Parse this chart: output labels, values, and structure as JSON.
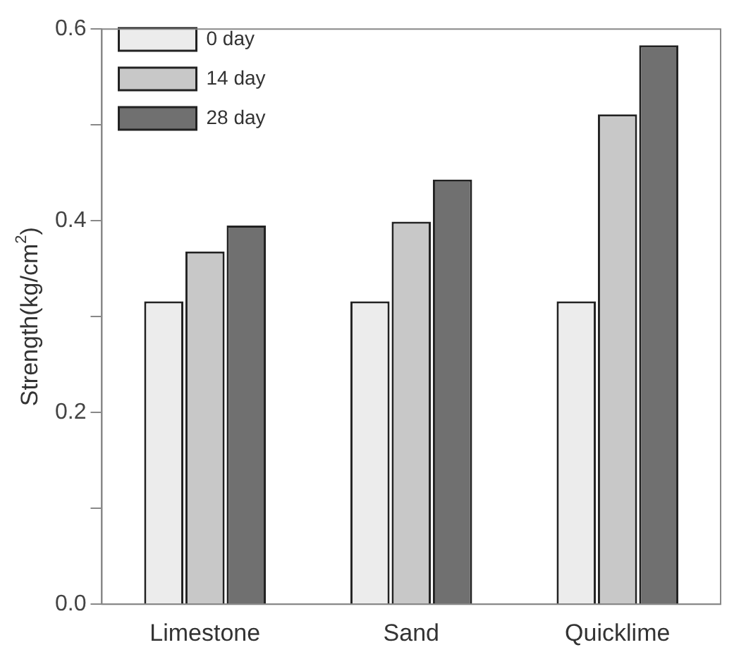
{
  "chart_data": {
    "type": "bar",
    "categories": [
      "Limestone",
      "Sand",
      "Quicklime"
    ],
    "series": [
      {
        "name": "0 day",
        "color": "#ececec",
        "values": [
          0.316,
          0.316,
          0.316
        ]
      },
      {
        "name": "14 day",
        "color": "#c8c8c8",
        "values": [
          0.368,
          0.399,
          0.511
        ]
      },
      {
        "name": "28 day",
        "color": "#707070",
        "values": [
          0.395,
          0.443,
          0.583
        ]
      }
    ],
    "ylabel": "Strength(kg/cm$^{2}$)",
    "ylim": [
      0,
      0.6
    ],
    "yticks": [
      {
        "value": 0,
        "label": "0.0"
      },
      {
        "value": 0.1,
        "label": null
      },
      {
        "value": 0.2,
        "label": "0.2"
      },
      {
        "value": 0.3,
        "label": null
      },
      {
        "value": 0.4,
        "label": "0.4"
      },
      {
        "value": 0.5,
        "label": null
      },
      {
        "value": 0.6,
        "label": "0.6"
      }
    ],
    "legend": "top left",
    "grid": false
  }
}
